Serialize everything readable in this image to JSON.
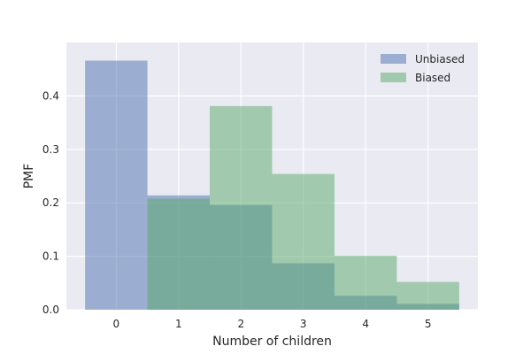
{
  "chart_data": {
    "type": "bar",
    "categories": [
      "0",
      "1",
      "2",
      "3",
      "4",
      "5"
    ],
    "x": [
      0,
      1,
      2,
      3,
      4,
      5
    ],
    "series": [
      {
        "name": "Unbiased",
        "color": "#4c72b0",
        "values": [
          0.466,
          0.214,
          0.196,
          0.087,
          0.026,
          0.011
        ]
      },
      {
        "name": "Biased",
        "color": "#55a868",
        "values": [
          0.0,
          0.208,
          0.381,
          0.254,
          0.101,
          0.052
        ]
      }
    ],
    "xlabel": "Number of children",
    "ylabel": "PMF",
    "xlim": [
      -0.8,
      5.8
    ],
    "ylim": [
      0.0,
      0.5
    ],
    "yticks": [
      0.0,
      0.1,
      0.2,
      0.3,
      0.4
    ],
    "ytick_labels": [
      "0.0",
      "0.1",
      "0.2",
      "0.3",
      "0.4"
    ],
    "grid": true,
    "legend_position": "top-right",
    "background_color": "#eaeaf2"
  }
}
